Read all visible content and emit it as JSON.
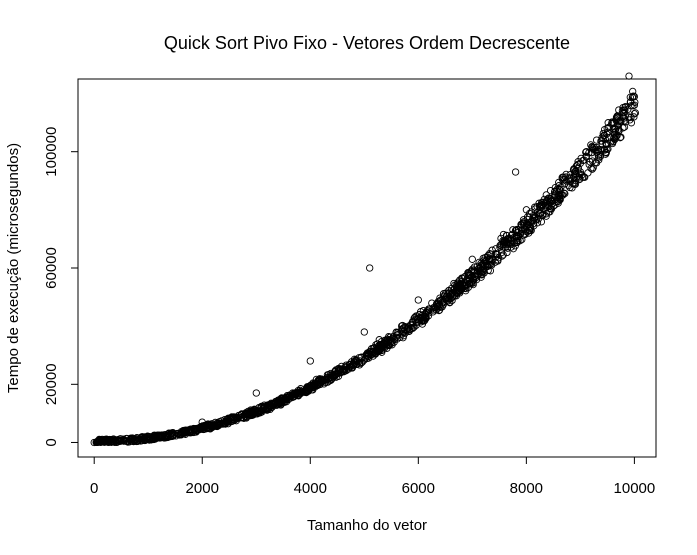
{
  "chart_data": {
    "type": "scatter",
    "title": "Quick Sort Pivo Fixo - Vetores Ordem Decrescente",
    "xlabel": "Tamanho do vetor",
    "ylabel": "Tempo de execução (microsegundos)",
    "xlim": [
      -300,
      10400
    ],
    "ylim": [
      -5000,
      125000
    ],
    "x_ticks": [
      0,
      2000,
      4000,
      6000,
      8000,
      10000
    ],
    "x_tick_labels": [
      "0",
      "2000",
      "4000",
      "6000",
      "8000",
      "10000"
    ],
    "y_ticks": [
      0,
      20000,
      60000,
      100000
    ],
    "y_tick_labels": [
      "0",
      "20000",
      "60000",
      "100000"
    ],
    "grid": false,
    "legend": "none",
    "marker": "open-circle",
    "trend": {
      "x": 10000,
      "y": 114000,
      "exponent": 2.0
    },
    "series": [
      {
        "sample_points": [
          {
            "x": 0,
            "y": 0
          },
          {
            "x": 1000,
            "y": 1500
          },
          {
            "x": 2000,
            "y": 7000
          },
          {
            "x": 3000,
            "y": 17000
          },
          {
            "x": 4000,
            "y": 28000
          },
          {
            "x": 5000,
            "y": 38000
          },
          {
            "x": 5100,
            "y": 60000
          },
          {
            "x": 6000,
            "y": 49000
          },
          {
            "x": 7000,
            "y": 63000
          },
          {
            "x": 7800,
            "y": 93000
          },
          {
            "x": 8000,
            "y": 80000
          },
          {
            "x": 9000,
            "y": 96000
          },
          {
            "x": 9300,
            "y": 104000
          },
          {
            "x": 9900,
            "y": 126000
          },
          {
            "x": 10000,
            "y": 116000
          }
        ]
      }
    ]
  }
}
